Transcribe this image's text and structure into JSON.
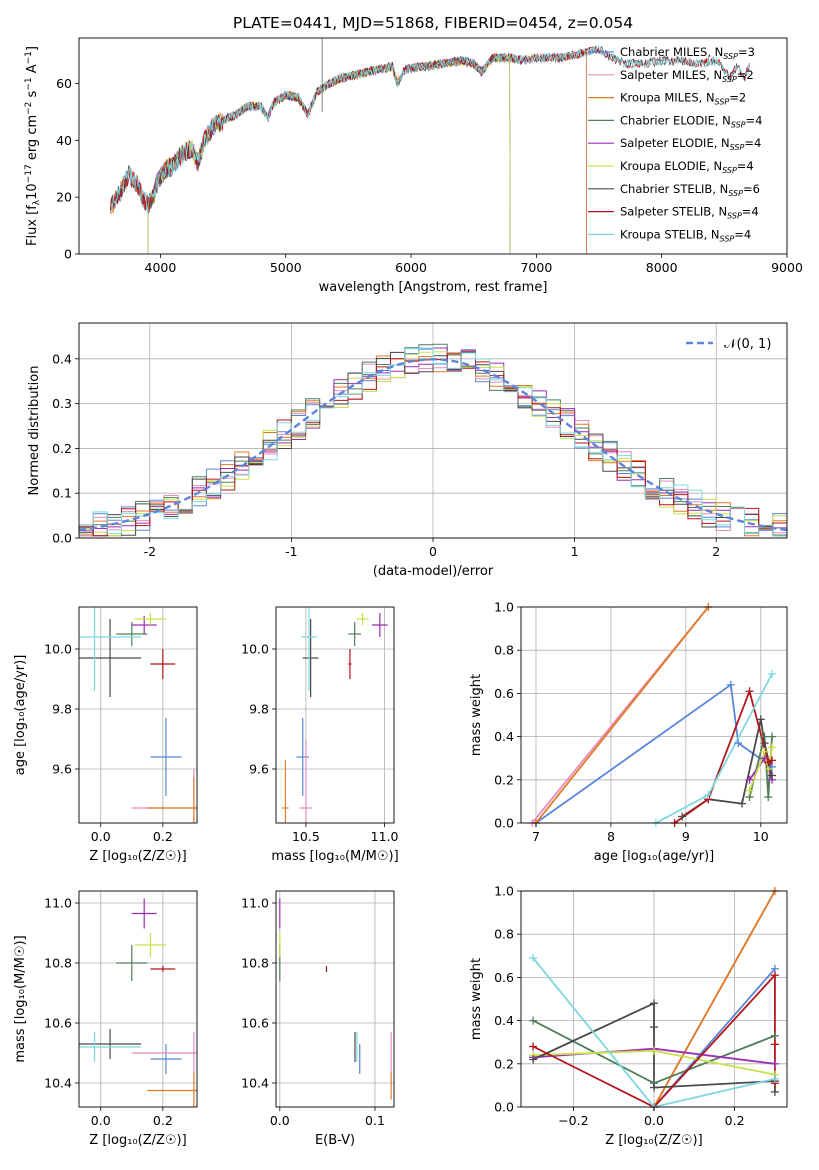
{
  "colors": {
    "chabrier_miles": "#5b85d9",
    "salpeter_miles": "#e88bbd",
    "kroupa_miles": "#e07b27",
    "chabrier_elodie": "#4f7d5a",
    "salpeter_elodie": "#9c2fb5",
    "kroupa_elodie": "#c8e04a",
    "chabrier_stelib": "#4a4a4a",
    "salpeter_stelib": "#b3161b",
    "kroupa_stelib": "#7fd8e0",
    "normal": "#5b85d9",
    "grid": "#b0b0b0"
  },
  "chart_data": [
    {
      "id": "spectrum",
      "type": "line",
      "title": "PLATE=0441, MJD=51868, FIBERID=0454, z=0.054",
      "xlabel": "wavelength [Angstrom, rest frame]",
      "ylabel_pre": "Flux [f",
      "ylabel_sub": "λ",
      "ylabel_mid": "10",
      "ylabel_sup1": "−17",
      "ylabel_mid2": " erg cm",
      "ylabel_sup2": "−2",
      "ylabel_mid3": " s",
      "ylabel_sup3": "−1",
      "ylabel_mid4": " A",
      "ylabel_sup4": "−1",
      "ylabel_post": "]",
      "xlim": [
        3350,
        9000
      ],
      "ylim": [
        0,
        76
      ],
      "xticks": [
        4000,
        5000,
        6000,
        7000,
        8000,
        9000
      ],
      "yticks": [
        0,
        20,
        40,
        60
      ],
      "grid": false,
      "legend_position": "top-right",
      "continuum": [
        [
          3600,
          16
        ],
        [
          3680,
          22
        ],
        [
          3750,
          28
        ],
        [
          3820,
          24
        ],
        [
          3860,
          20
        ],
        [
          3900,
          17
        ],
        [
          3940,
          20
        ],
        [
          3980,
          26
        ],
        [
          4050,
          30
        ],
        [
          4100,
          31
        ],
        [
          4150,
          34
        ],
        [
          4200,
          36
        ],
        [
          4250,
          37
        ],
        [
          4300,
          32
        ],
        [
          4350,
          40
        ],
        [
          4420,
          45
        ],
        [
          4500,
          47
        ],
        [
          4600,
          49
        ],
        [
          4700,
          52
        ],
        [
          4800,
          52
        ],
        [
          4860,
          48
        ],
        [
          4900,
          53
        ],
        [
          5000,
          56
        ],
        [
          5100,
          55
        ],
        [
          5175,
          49
        ],
        [
          5250,
          57
        ],
        [
          5350,
          60
        ],
        [
          5450,
          62
        ],
        [
          5550,
          63
        ],
        [
          5650,
          64
        ],
        [
          5750,
          65
        ],
        [
          5850,
          66
        ],
        [
          5890,
          60
        ],
        [
          5950,
          65
        ],
        [
          6100,
          66
        ],
        [
          6250,
          67
        ],
        [
          6400,
          68
        ],
        [
          6500,
          67
        ],
        [
          6563,
          64
        ],
        [
          6650,
          69
        ],
        [
          6800,
          69
        ],
        [
          6900,
          68
        ],
        [
          7000,
          69
        ],
        [
          7100,
          69
        ],
        [
          7200,
          69
        ],
        [
          7300,
          70
        ],
        [
          7400,
          71
        ],
        [
          7500,
          72
        ],
        [
          7600,
          69
        ],
        [
          7700,
          67
        ],
        [
          7850,
          67
        ],
        [
          8000,
          68
        ],
        [
          8150,
          68
        ],
        [
          8300,
          67
        ],
        [
          8450,
          68
        ],
        [
          8542,
          62
        ],
        [
          8600,
          66
        ],
        [
          8662,
          62
        ],
        [
          8700,
          66
        ]
      ],
      "series": [
        {
          "name_pre": "Chabrier MILES, N",
          "name_sub": "SSP",
          "name_post": "=3",
          "color_key": "chabrier_miles",
          "start": 3600,
          "end": 7400
        },
        {
          "name_pre": "Salpeter MILES, N",
          "name_sub": "SSP",
          "name_post": "=2",
          "color_key": "salpeter_miles",
          "start": 3600,
          "end": 7400
        },
        {
          "name_pre": "Kroupa MILES, N",
          "name_sub": "SSP",
          "name_post": "=2",
          "color_key": "kroupa_miles",
          "start": 3600,
          "end": 7400
        },
        {
          "name_pre": "Chabrier ELODIE, N",
          "name_sub": "SSP",
          "name_post": "=4",
          "color_key": "chabrier_elodie",
          "start": 3900,
          "end": 6790
        },
        {
          "name_pre": "Salpeter ELODIE, N",
          "name_sub": "SSP",
          "name_post": "=4",
          "color_key": "salpeter_elodie",
          "start": 3900,
          "end": 6790
        },
        {
          "name_pre": "Kroupa ELODIE, N",
          "name_sub": "SSP",
          "name_post": "=4",
          "color_key": "kroupa_elodie",
          "start": 3900,
          "end": 6790
        },
        {
          "name_pre": "Chabrier STELIB, N",
          "name_sub": "SSP",
          "name_post": "=6",
          "color_key": "chabrier_stelib",
          "start": 3600,
          "end": 8700
        },
        {
          "name_pre": "Salpeter STELIB, N",
          "name_sub": "SSP",
          "name_post": "=4",
          "color_key": "salpeter_stelib",
          "start": 3600,
          "end": 8700
        },
        {
          "name_pre": "Kroupa STELIB, N",
          "name_sub": "SSP",
          "name_post": "=4",
          "color_key": "kroupa_stelib",
          "start": 3600,
          "end": 8700
        }
      ]
    },
    {
      "id": "residuals",
      "type": "line",
      "xlabel": "(data-model)/error",
      "ylabel": "Normed distribution",
      "xlim": [
        -2.5,
        2.5
      ],
      "ylim": [
        0,
        0.48
      ],
      "xticks": [
        -2,
        -1,
        0,
        1,
        2
      ],
      "yticks": [
        0.0,
        0.1,
        0.2,
        0.3,
        0.4
      ],
      "ytick_labels": [
        "0.0",
        "0.1",
        "0.2",
        "0.3",
        "0.4"
      ],
      "grid": true,
      "legend_position": "top-right",
      "normal_label": "𝒩(0, 1)",
      "bin_width": 0.1
    },
    {
      "id": "age_vs_Z",
      "type": "scatter",
      "xlabel": "Z [log₁₀(Z/Z☉)]",
      "ylabel": "age  [log₁₀(age/yr)]",
      "xlim": [
        -0.07,
        0.31
      ],
      "ylim": [
        9.42,
        10.14
      ],
      "xticks": [
        0.0,
        0.2
      ],
      "xtick_labels": [
        "0.0",
        "0.2"
      ],
      "yticks": [
        9.6,
        9.8,
        10.0
      ],
      "ytick_labels": [
        "9.6",
        "9.8",
        "10.0"
      ],
      "grid": true,
      "points": [
        {
          "color_key": "chabrier_miles",
          "x": 0.21,
          "y": 9.64,
          "xerr": 0.05,
          "yerr": 0.13
        },
        {
          "color_key": "salpeter_miles",
          "x": 0.3,
          "y": 9.47,
          "xerr": 0.2,
          "yerr": 0.13
        },
        {
          "color_key": "kroupa_miles",
          "x": 0.3,
          "y": 9.47,
          "xerr": 0.15,
          "yerr": 0.1
        },
        {
          "color_key": "chabrier_elodie",
          "x": 0.1,
          "y": 10.05,
          "xerr": 0.05,
          "yerr": 0.04
        },
        {
          "color_key": "salpeter_elodie",
          "x": 0.14,
          "y": 10.08,
          "xerr": 0.04,
          "yerr": 0.03
        },
        {
          "color_key": "kroupa_elodie",
          "x": 0.16,
          "y": 10.1,
          "xerr": 0.05,
          "yerr": 0.02
        },
        {
          "color_key": "chabrier_stelib",
          "x": 0.03,
          "y": 9.97,
          "xerr": 0.1,
          "yerr": 0.13
        },
        {
          "color_key": "salpeter_stelib",
          "x": 0.2,
          "y": 9.95,
          "xerr": 0.04,
          "yerr": 0.05
        },
        {
          "color_key": "kroupa_stelib",
          "x": -0.02,
          "y": 10.04,
          "xerr": 0.15,
          "yerr": 0.18
        }
      ]
    },
    {
      "id": "age_vs_mass",
      "type": "scatter",
      "xlabel": "mass [log₁₀(M/M☉)]",
      "ylabel": "",
      "xlim": [
        10.31,
        11.06
      ],
      "ylim": [
        9.42,
        10.14
      ],
      "xticks": [
        10.5,
        11.0
      ],
      "xtick_labels": [
        "10.5",
        "11.0"
      ],
      "yticks": [
        9.6,
        9.8,
        10.0
      ],
      "ytick_labels": [
        "9.6",
        "9.8",
        "10.0"
      ],
      "grid": true,
      "points": [
        {
          "color_key": "chabrier_miles",
          "x": 10.48,
          "y": 9.64,
          "xerr": 0.04,
          "yerr": 0.13
        },
        {
          "color_key": "salpeter_miles",
          "x": 10.5,
          "y": 9.47,
          "xerr": 0.04,
          "yerr": 0.23
        },
        {
          "color_key": "kroupa_miles",
          "x": 10.37,
          "y": 9.47,
          "xerr": 0.02,
          "yerr": 0.16
        },
        {
          "color_key": "chabrier_elodie",
          "x": 10.81,
          "y": 10.05,
          "xerr": 0.04,
          "yerr": 0.04
        },
        {
          "color_key": "salpeter_elodie",
          "x": 10.97,
          "y": 10.08,
          "xerr": 0.05,
          "yerr": 0.04
        },
        {
          "color_key": "kroupa_elodie",
          "x": 10.86,
          "y": 10.1,
          "xerr": 0.04,
          "yerr": 0.02
        },
        {
          "color_key": "chabrier_stelib",
          "x": 10.53,
          "y": 9.97,
          "xerr": 0.05,
          "yerr": 0.13
        },
        {
          "color_key": "salpeter_stelib",
          "x": 10.78,
          "y": 9.95,
          "xerr": 0.01,
          "yerr": 0.05
        },
        {
          "color_key": "kroupa_stelib",
          "x": 10.52,
          "y": 10.04,
          "xerr": 0.05,
          "yerr": 0.18
        }
      ]
    },
    {
      "id": "weight_vs_age",
      "type": "line",
      "xlabel": "age  [log₁₀(age/yr)]",
      "ylabel": "mass weight",
      "xlim": [
        6.8,
        10.35
      ],
      "ylim": [
        0,
        1
      ],
      "xticks": [
        7,
        8,
        9,
        10
      ],
      "yticks": [
        0.0,
        0.2,
        0.4,
        0.6,
        0.8,
        1.0
      ],
      "ytick_labels": [
        "0.0",
        "0.2",
        "0.4",
        "0.6",
        "0.8",
        "1.0"
      ],
      "grid": true,
      "series": [
        {
          "color_key": "chabrier_miles",
          "x": [
            7.0,
            9.6,
            9.7,
            10.15
          ],
          "y": [
            0.0,
            0.64,
            0.37,
            0.26
          ]
        },
        {
          "color_key": "salpeter_miles",
          "x": [
            6.95,
            9.3
          ],
          "y": [
            0.0,
            1.0
          ]
        },
        {
          "color_key": "kroupa_miles",
          "x": [
            7.0,
            9.3
          ],
          "y": [
            0.0,
            1.0
          ]
        },
        {
          "color_key": "chabrier_elodie",
          "x": [
            9.85,
            10.05,
            10.1,
            10.15
          ],
          "y": [
            0.12,
            0.4,
            0.12,
            0.4
          ]
        },
        {
          "color_key": "salpeter_elodie",
          "x": [
            9.85,
            10.05,
            10.15
          ],
          "y": [
            0.2,
            0.3,
            0.2
          ]
        },
        {
          "color_key": "kroupa_elodie",
          "x": [
            9.85,
            10.05,
            10.1,
            10.15
          ],
          "y": [
            0.15,
            0.33,
            0.25,
            0.35
          ]
        },
        {
          "color_key": "chabrier_stelib",
          "x": [
            8.95,
            9.3,
            9.75,
            10.0,
            10.05,
            10.15
          ],
          "y": [
            0.03,
            0.11,
            0.09,
            0.48,
            0.37,
            0.22
          ]
        },
        {
          "color_key": "salpeter_stelib",
          "x": [
            8.85,
            9.3,
            9.85,
            10.1,
            10.15
          ],
          "y": [
            0.0,
            0.11,
            0.61,
            0.28,
            0.29
          ]
        },
        {
          "color_key": "kroupa_stelib",
          "x": [
            8.6,
            9.3,
            10.15
          ],
          "y": [
            0.0,
            0.13,
            0.69
          ]
        }
      ]
    },
    {
      "id": "mass_vs_Z",
      "type": "scatter",
      "xlabel": "Z [log₁₀(Z/Z☉)]",
      "ylabel": "mass [log₁₀(M/M☉)]",
      "xlim": [
        -0.07,
        0.31
      ],
      "ylim": [
        10.32,
        11.04
      ],
      "xticks": [
        0.0,
        0.2
      ],
      "xtick_labels": [
        "0.0",
        "0.2"
      ],
      "yticks": [
        10.4,
        10.6,
        10.8,
        11.0
      ],
      "ytick_labels": [
        "10.4",
        "10.6",
        "10.8",
        "11.0"
      ],
      "grid": true,
      "points": [
        {
          "color_key": "chabrier_miles",
          "x": 0.21,
          "y": 10.48,
          "xerr": 0.05,
          "yerr": 0.05
        },
        {
          "color_key": "salpeter_miles",
          "x": 0.3,
          "y": 10.5,
          "xerr": 0.2,
          "yerr": 0.07
        },
        {
          "color_key": "kroupa_miles",
          "x": 0.3,
          "y": 10.375,
          "xerr": 0.15,
          "yerr": 0.06
        },
        {
          "color_key": "chabrier_elodie",
          "x": 0.1,
          "y": 10.8,
          "xerr": 0.05,
          "yerr": 0.06
        },
        {
          "color_key": "salpeter_elodie",
          "x": 0.14,
          "y": 10.965,
          "xerr": 0.04,
          "yerr": 0.05
        },
        {
          "color_key": "kroupa_elodie",
          "x": 0.16,
          "y": 10.86,
          "xerr": 0.05,
          "yerr": 0.04
        },
        {
          "color_key": "chabrier_stelib",
          "x": 0.03,
          "y": 10.53,
          "xerr": 0.1,
          "yerr": 0.05
        },
        {
          "color_key": "salpeter_stelib",
          "x": 0.2,
          "y": 10.78,
          "xerr": 0.04,
          "yerr": 0.01
        },
        {
          "color_key": "kroupa_stelib",
          "x": -0.02,
          "y": 10.52,
          "xerr": 0.15,
          "yerr": 0.05
        }
      ]
    },
    {
      "id": "mass_vs_ebv",
      "type": "scatter",
      "xlabel": "E(B-V)",
      "ylabel": "",
      "xlim": [
        -0.004,
        0.12
      ],
      "ylim": [
        10.32,
        11.04
      ],
      "xticks": [
        0.0,
        0.1
      ],
      "xtick_labels": [
        "0.0",
        "0.1"
      ],
      "yticks": [
        10.4,
        10.6,
        10.8,
        11.0
      ],
      "ytick_labels": [
        "10.4",
        "10.6",
        "10.8",
        "11.0"
      ],
      "grid": true,
      "points": [
        {
          "color_key": "chabrier_miles",
          "x": 0.084,
          "y": 10.48,
          "xerr": 0.0,
          "yerr": 0.05
        },
        {
          "color_key": "salpeter_miles",
          "x": 0.117,
          "y": 10.5,
          "xerr": 0.0,
          "yerr": 0.07
        },
        {
          "color_key": "kroupa_miles",
          "x": 0.117,
          "y": 10.39,
          "xerr": 0.0,
          "yerr": 0.045
        },
        {
          "color_key": "chabrier_elodie",
          "x": 0.0,
          "y": 10.8,
          "xerr": 0.0,
          "yerr": 0.06
        },
        {
          "color_key": "salpeter_elodie",
          "x": 0.0,
          "y": 10.965,
          "xerr": 0.0,
          "yerr": 0.05
        },
        {
          "color_key": "kroupa_elodie",
          "x": 0.0,
          "y": 10.86,
          "xerr": 0.0,
          "yerr": 0.04
        },
        {
          "color_key": "chabrier_stelib",
          "x": 0.079,
          "y": 10.52,
          "xerr": 0.0,
          "yerr": 0.05
        },
        {
          "color_key": "salpeter_stelib",
          "x": 0.049,
          "y": 10.78,
          "xerr": 0.0,
          "yerr": 0.01
        },
        {
          "color_key": "kroupa_stelib",
          "x": 0.081,
          "y": 10.52,
          "xerr": 0.0,
          "yerr": 0.05
        }
      ]
    },
    {
      "id": "weight_vs_Z",
      "type": "line",
      "xlabel": "Z [log₁₀(Z/Z☉)]",
      "ylabel": "mass weight",
      "xlim": [
        -0.33,
        0.33
      ],
      "ylim": [
        0,
        1
      ],
      "xticks": [
        -0.2,
        0.0,
        0.2
      ],
      "xtick_labels": [
        "−0.2",
        "0.0",
        "0.2"
      ],
      "yticks": [
        0.0,
        0.2,
        0.4,
        0.6,
        0.8,
        1.0
      ],
      "ytick_labels": [
        "0.0",
        "0.2",
        "0.4",
        "0.6",
        "0.8",
        "1.0"
      ],
      "grid": true,
      "series": [
        {
          "color_key": "chabrier_miles",
          "x": [
            0.0,
            0.3
          ],
          "y": [
            0.0,
            0.64
          ]
        },
        {
          "color_key": "salpeter_miles",
          "x": [
            0.0,
            0.3
          ],
          "y": [
            0.0,
            1.0
          ]
        },
        {
          "color_key": "kroupa_miles",
          "x": [
            0.0,
            0.3
          ],
          "y": [
            0.0,
            1.0
          ]
        },
        {
          "color_key": "chabrier_elodie",
          "x": [
            -0.3,
            0.0,
            0.3
          ],
          "y": [
            0.4,
            0.11,
            0.33
          ]
        },
        {
          "color_key": "salpeter_elodie",
          "x": [
            -0.3,
            0.0,
            0.3
          ],
          "y": [
            0.23,
            0.27,
            0.2
          ]
        },
        {
          "color_key": "kroupa_elodie",
          "x": [
            -0.3,
            0.0,
            0.3
          ],
          "y": [
            0.24,
            0.26,
            0.15
          ]
        },
        {
          "color_key": "chabrier_stelib",
          "x": [
            -0.3,
            0.0,
            0.0,
            0.0,
            0.3,
            0.3
          ],
          "y": [
            0.22,
            0.48,
            0.37,
            0.09,
            0.12,
            0.07
          ]
        },
        {
          "color_key": "salpeter_stelib",
          "x": [
            -0.3,
            0.0,
            0.3,
            0.3,
            0.3
          ],
          "y": [
            0.28,
            0.0,
            0.61,
            0.29,
            0.11
          ]
        },
        {
          "color_key": "kroupa_stelib",
          "x": [
            -0.3,
            0.0,
            0.3
          ],
          "y": [
            0.69,
            0.0,
            0.13
          ]
        }
      ]
    }
  ]
}
